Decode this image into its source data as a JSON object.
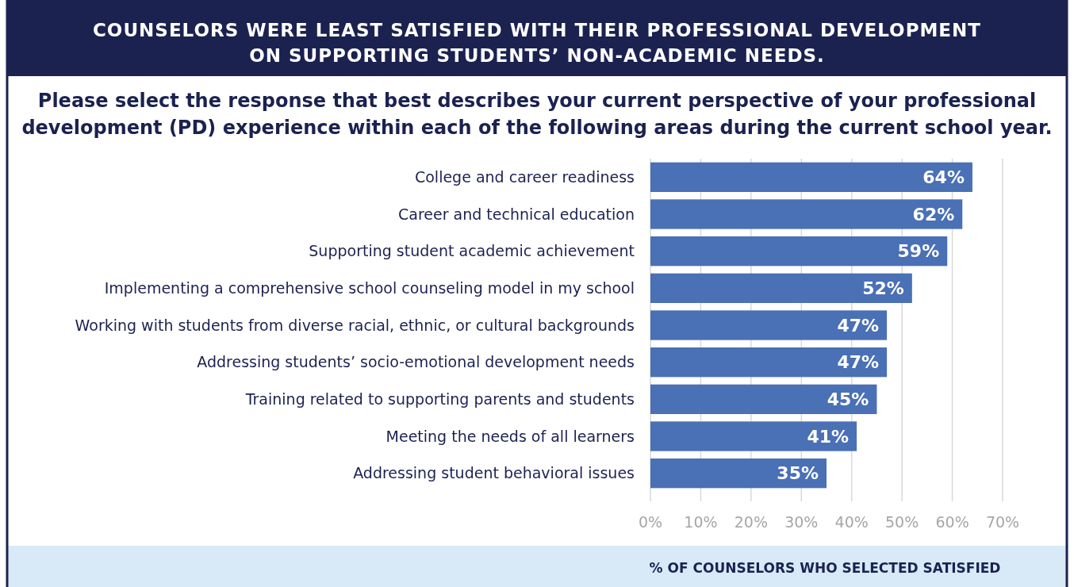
{
  "chart_data": {
    "type": "bar",
    "orientation": "horizontal",
    "title": "COUNSELORS WERE LEAST SATISFIED WITH THEIR PROFESSIONAL DEVELOPMENT\nON SUPPORTING STUDENTS’ NON-ACADEMIC NEEDS.",
    "subtitle": "Please select the response that best describes your current perspective of your professional\ndevelopment (PD) experience within each of the following areas during the current school year.",
    "xlabel": "% OF COUNSELORS WHO SELECTED SATISFIED",
    "categories": [
      "College and career readiness",
      "Career and technical education",
      "Supporting student academic achievement",
      "Implementing a comprehensive school counseling model in my school",
      "Working with students from diverse racial, ethnic, or cultural backgrounds",
      "Addressing students’ socio-emotional development needs",
      "Training related to supporting parents and students",
      "Meeting the needs of all learners",
      "Addressing student behavioral issues"
    ],
    "values": [
      64,
      62,
      59,
      52,
      47,
      47,
      45,
      41,
      35
    ],
    "value_labels": [
      "64%",
      "62%",
      "59%",
      "52%",
      "47%",
      "47%",
      "45%",
      "41%",
      "35%"
    ],
    "color": "#4a70b5",
    "xlim": [
      0,
      70
    ],
    "xticks": [
      {
        "value": 0,
        "label": "0%"
      },
      {
        "value": 10,
        "label": "10%"
      },
      {
        "value": 20,
        "label": "20%"
      },
      {
        "value": 30,
        "label": "30%"
      },
      {
        "value": 40,
        "label": "40%"
      },
      {
        "value": 50,
        "label": "50%"
      },
      {
        "value": 60,
        "label": "60%"
      },
      {
        "value": 70,
        "label": "70%"
      }
    ],
    "grid": "x"
  }
}
